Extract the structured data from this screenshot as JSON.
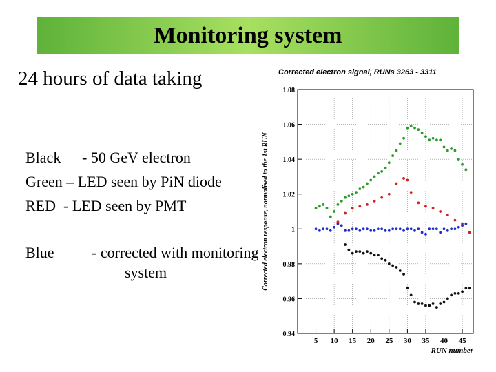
{
  "slide": {
    "title": "Monitoring system",
    "subtitle": "24 hours of data taking",
    "legend": [
      {
        "name": "Black",
        "desc": "- 50 GeV electron"
      },
      {
        "name": "Green",
        "desc": "– LED seen by PiN diode"
      },
      {
        "name": "RED",
        "desc": "- LED seen by PMT"
      },
      {
        "name": "Blue",
        "desc": "- corrected with monitoring",
        "desc2": "system"
      }
    ]
  },
  "chart_data": {
    "type": "scatter",
    "title": "Corrected electron signal,  RUNs 3263 - 3311",
    "xlabel": "RUN number",
    "ylabel": "Corrected electron response, normalised to the 1st RUN",
    "xlim": [
      0,
      48
    ],
    "ylim": [
      0.94,
      1.08
    ],
    "x_ticks": [
      5,
      10,
      15,
      20,
      25,
      30,
      35,
      40,
      45
    ],
    "y_ticks": [
      0.94,
      0.96,
      0.98,
      1.0,
      1.02,
      1.04,
      1.06,
      1.08
    ],
    "y_tick_labels": [
      "0.94",
      "0.96",
      "0.98",
      "1",
      "1.02",
      "1.04",
      "1.06",
      "1.08"
    ],
    "grid": true,
    "series": [
      {
        "color": "#2a9a2a",
        "points": [
          [
            5,
            1.012
          ],
          [
            6,
            1.013
          ],
          [
            7,
            1.014
          ],
          [
            8,
            1.012
          ],
          [
            9,
            1.007
          ],
          [
            10,
            1.01
          ],
          [
            11,
            1.014
          ],
          [
            12,
            1.016
          ],
          [
            13,
            1.018
          ],
          [
            14,
            1.019
          ],
          [
            15,
            1.02
          ],
          [
            16,
            1.021
          ],
          [
            17,
            1.023
          ],
          [
            18,
            1.024
          ],
          [
            19,
            1.026
          ],
          [
            20,
            1.028
          ],
          [
            21,
            1.03
          ],
          [
            22,
            1.032
          ],
          [
            23,
            1.033
          ],
          [
            24,
            1.035
          ],
          [
            25,
            1.038
          ],
          [
            26,
            1.042
          ],
          [
            27,
            1.045
          ],
          [
            28,
            1.049
          ],
          [
            29,
            1.052
          ],
          [
            30,
            1.058
          ],
          [
            31,
            1.059
          ],
          [
            32,
            1.058
          ],
          [
            33,
            1.057
          ],
          [
            34,
            1.055
          ],
          [
            35,
            1.053
          ],
          [
            36,
            1.051
          ],
          [
            37,
            1.052
          ],
          [
            38,
            1.051
          ],
          [
            39,
            1.051
          ],
          [
            40,
            1.047
          ],
          [
            41,
            1.045
          ],
          [
            42,
            1.046
          ],
          [
            43,
            1.045
          ],
          [
            44,
            1.04
          ],
          [
            45,
            1.037
          ],
          [
            46,
            1.034
          ]
        ]
      },
      {
        "color": "#cc2222",
        "points": [
          [
            11,
            1.004
          ],
          [
            13,
            1.009
          ],
          [
            15,
            1.012
          ],
          [
            17,
            1.013
          ],
          [
            19,
            1.014
          ],
          [
            21,
            1.016
          ],
          [
            23,
            1.018
          ],
          [
            25,
            1.02
          ],
          [
            27,
            1.026
          ],
          [
            29,
            1.029
          ],
          [
            30,
            1.028
          ],
          [
            31,
            1.021
          ],
          [
            33,
            1.015
          ],
          [
            35,
            1.013
          ],
          [
            37,
            1.012
          ],
          [
            39,
            1.01
          ],
          [
            41,
            1.008
          ],
          [
            43,
            1.005
          ],
          [
            45,
            1.003
          ],
          [
            47,
            0.998
          ]
        ]
      },
      {
        "color": "#1c2fcc",
        "points": [
          [
            5,
            1.0
          ],
          [
            6,
            0.999
          ],
          [
            7,
            1.0
          ],
          [
            8,
            1.0
          ],
          [
            9,
            0.999
          ],
          [
            10,
            1.001
          ],
          [
            11,
            1.003
          ],
          [
            12,
            1.002
          ],
          [
            13,
            0.999
          ],
          [
            14,
            0.999
          ],
          [
            15,
            1.0
          ],
          [
            16,
            1.0
          ],
          [
            17,
            0.999
          ],
          [
            18,
            1.0
          ],
          [
            19,
            1.0
          ],
          [
            20,
            0.999
          ],
          [
            21,
            0.999
          ],
          [
            22,
            1.0
          ],
          [
            23,
            1.0
          ],
          [
            24,
            0.999
          ],
          [
            25,
            0.999
          ],
          [
            26,
            1.0
          ],
          [
            27,
            1.0
          ],
          [
            28,
            1.0
          ],
          [
            29,
            0.999
          ],
          [
            30,
            1.0
          ],
          [
            31,
            1.0
          ],
          [
            32,
            0.999
          ],
          [
            33,
            1.0
          ],
          [
            34,
            0.998
          ],
          [
            35,
            0.997
          ],
          [
            36,
            1.0
          ],
          [
            37,
            1.0
          ],
          [
            38,
            1.0
          ],
          [
            39,
            0.998
          ],
          [
            40,
            1.0
          ],
          [
            41,
            0.999
          ],
          [
            42,
            1.0
          ],
          [
            43,
            1.0
          ],
          [
            44,
            1.001
          ],
          [
            45,
            1.002
          ],
          [
            46,
            1.003
          ]
        ]
      },
      {
        "color": "#111111",
        "points": [
          [
            13,
            0.991
          ],
          [
            14,
            0.988
          ],
          [
            15,
            0.986
          ],
          [
            16,
            0.987
          ],
          [
            17,
            0.987
          ],
          [
            18,
            0.986
          ],
          [
            19,
            0.987
          ],
          [
            20,
            0.986
          ],
          [
            21,
            0.985
          ],
          [
            22,
            0.985
          ],
          [
            23,
            0.983
          ],
          [
            24,
            0.982
          ],
          [
            25,
            0.98
          ],
          [
            26,
            0.979
          ],
          [
            27,
            0.978
          ],
          [
            28,
            0.976
          ],
          [
            29,
            0.974
          ],
          [
            30,
            0.966
          ],
          [
            31,
            0.962
          ],
          [
            32,
            0.958
          ],
          [
            33,
            0.957
          ],
          [
            34,
            0.957
          ],
          [
            35,
            0.956
          ],
          [
            36,
            0.956
          ],
          [
            37,
            0.957
          ],
          [
            38,
            0.955
          ],
          [
            39,
            0.957
          ],
          [
            40,
            0.958
          ],
          [
            41,
            0.96
          ],
          [
            42,
            0.962
          ],
          [
            43,
            0.963
          ],
          [
            44,
            0.963
          ],
          [
            45,
            0.964
          ],
          [
            46,
            0.966
          ],
          [
            47,
            0.966
          ]
        ]
      }
    ]
  }
}
